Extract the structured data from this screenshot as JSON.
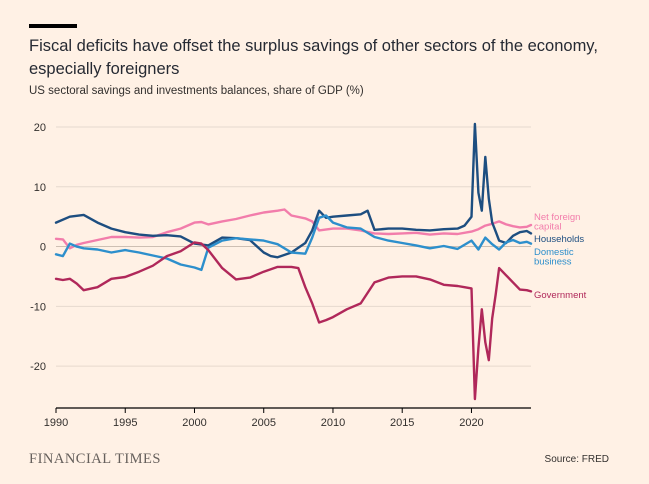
{
  "title": "Fiscal deficits have offset the surplus savings of other sectors of the economy, especially foreigners",
  "subtitle": "US sectoral savings and investments balances, share of GDP (%)",
  "brand": "FINANCIAL TIMES",
  "source": "Source: FRED",
  "colors": {
    "background": "#FFF1E5",
    "net_foreign_capital": "#F27DAB",
    "households": "#1D4E80",
    "domestic_business": "#2D8FCC",
    "government": "#B0285A",
    "grid": "#E6D9CE",
    "axis": "#33302E"
  },
  "chart_data": {
    "type": "line",
    "title": "Fiscal deficits have offset the surplus savings of other sectors of the economy, especially foreigners",
    "subtitle": "US sectoral savings and investments balances, share of GDP (%)",
    "xlabel": "",
    "ylabel": "",
    "xlim": [
      1990,
      2024.3
    ],
    "ylim": [
      -27,
      22
    ],
    "xticks": [
      1990,
      1995,
      2000,
      2005,
      2010,
      2015,
      2020
    ],
    "yticks": [
      20,
      10,
      0,
      -10,
      -20
    ],
    "grid": "horizontal",
    "legend": "direct labels at right end of lines",
    "series": [
      {
        "name": "Net foreign capital",
        "label": [
          "Net foreign",
          "capital"
        ],
        "color": "#F27DAB",
        "x": [
          1990,
          1990.5,
          1991,
          1991.5,
          1992,
          1993,
          1994,
          1995,
          1996,
          1997,
          1998,
          1999,
          2000,
          2000.5,
          2001,
          2002,
          2003,
          2004,
          2005,
          2006,
          2006.5,
          2007,
          2008,
          2008.5,
          2009,
          2010,
          2011,
          2012,
          2013,
          2014,
          2015,
          2016,
          2017,
          2018,
          2019,
          2020,
          2020.5,
          2021,
          2021.5,
          2022,
          2022.5,
          2023,
          2023.5,
          2024,
          2024.3
        ],
        "y": [
          1.3,
          1.2,
          -0.3,
          0.3,
          0.6,
          1.1,
          1.6,
          1.6,
          1.5,
          1.6,
          2.4,
          3.0,
          4.0,
          4.1,
          3.7,
          4.2,
          4.6,
          5.2,
          5.7,
          6.0,
          6.2,
          5.2,
          4.7,
          4.2,
          2.7,
          3.0,
          3.0,
          2.7,
          2.2,
          2.1,
          2.2,
          2.3,
          2.0,
          2.2,
          2.1,
          2.5,
          2.9,
          3.5,
          3.8,
          4.2,
          3.7,
          3.4,
          3.2,
          3.3,
          3.6
        ]
      },
      {
        "name": "Households",
        "color": "#1D4E80",
        "x": [
          1990,
          1991,
          1992,
          1993,
          1994,
          1995,
          1996,
          1997,
          1998,
          1999,
          2000,
          2001,
          2002,
          2003,
          2004,
          2005,
          2005.5,
          2006,
          2007,
          2008,
          2008.5,
          2009,
          2009.5,
          2010,
          2011,
          2012,
          2012.5,
          2013,
          2014,
          2015,
          2016,
          2017,
          2018,
          2019,
          2019.5,
          2020,
          2020.25,
          2020.5,
          2020.75,
          2021,
          2021.25,
          2021.5,
          2021.75,
          2022,
          2022.5,
          2023,
          2023.5,
          2024,
          2024.3
        ],
        "y": [
          4.0,
          5.0,
          5.3,
          4.0,
          3.0,
          2.4,
          2.0,
          1.8,
          1.9,
          1.7,
          0.5,
          0.2,
          1.5,
          1.4,
          1.1,
          -1.0,
          -1.6,
          -1.8,
          -1.0,
          0.6,
          2.7,
          6.0,
          4.8,
          5.0,
          5.2,
          5.4,
          6.0,
          2.8,
          3.0,
          3.0,
          2.8,
          2.7,
          2.9,
          3.0,
          3.5,
          5.0,
          20.5,
          9.0,
          6.0,
          15.0,
          8.0,
          4.0,
          2.5,
          1.0,
          0.6,
          1.8,
          2.4,
          2.6,
          2.2
        ]
      },
      {
        "name": "Domestic business",
        "label": [
          "Domestic",
          "business"
        ],
        "color": "#2D8FCC",
        "x": [
          1990,
          1990.5,
          1991,
          1991.5,
          1992,
          1993,
          1994,
          1995,
          1996,
          1997,
          1998,
          1999,
          2000,
          2000.5,
          2001,
          2002,
          2003,
          2004,
          2005,
          2006,
          2007,
          2008,
          2008.5,
          2009,
          2009.5,
          2010,
          2011,
          2012,
          2013,
          2014,
          2015,
          2016,
          2017,
          2018,
          2019,
          2020,
          2020.5,
          2021,
          2021.5,
          2022,
          2022.5,
          2023,
          2023.5,
          2024,
          2024.3
        ],
        "y": [
          -1.3,
          -1.6,
          0.5,
          0.0,
          -0.3,
          -0.5,
          -1.0,
          -0.6,
          -1.0,
          -1.5,
          -2.0,
          -3.0,
          -3.5,
          -3.9,
          -0.2,
          1.0,
          1.4,
          1.2,
          1.0,
          0.4,
          -1.0,
          -1.2,
          1.5,
          4.8,
          5.2,
          4.0,
          3.2,
          3.0,
          1.6,
          1.0,
          0.6,
          0.2,
          -0.3,
          0.1,
          -0.4,
          1.0,
          -0.5,
          1.5,
          0.4,
          -0.5,
          0.7,
          1.1,
          0.6,
          0.8,
          0.5
        ]
      },
      {
        "name": "Government",
        "color": "#B0285A",
        "x": [
          1990,
          1990.5,
          1991,
          1991.5,
          1992,
          1993,
          1994,
          1995,
          1996,
          1997,
          1998,
          1999,
          2000,
          2000.5,
          2001,
          2002,
          2003,
          2004,
          2005,
          2006,
          2007,
          2007.5,
          2008,
          2008.5,
          2009,
          2009.5,
          2010,
          2011,
          2012,
          2013,
          2014,
          2015,
          2016,
          2017,
          2018,
          2019,
          2019.5,
          2020,
          2020.25,
          2020.5,
          2020.75,
          2021,
          2021.25,
          2021.5,
          2021.75,
          2022,
          2022.5,
          2023,
          2023.5,
          2024,
          2024.3
        ],
        "y": [
          -5.4,
          -5.6,
          -5.4,
          -6.2,
          -7.3,
          -6.8,
          -5.4,
          -5.1,
          -4.2,
          -3.2,
          -1.6,
          -0.8,
          0.7,
          0.5,
          -0.6,
          -3.6,
          -5.5,
          -5.2,
          -4.2,
          -3.4,
          -3.4,
          -3.6,
          -6.8,
          -9.5,
          -12.7,
          -12.3,
          -11.8,
          -10.5,
          -9.5,
          -6.0,
          -5.2,
          -5.0,
          -5.0,
          -5.5,
          -6.4,
          -6.6,
          -6.8,
          -7.0,
          -25.5,
          -17.0,
          -10.5,
          -16.0,
          -19.0,
          -12.0,
          -8.0,
          -3.6,
          -4.8,
          -6.0,
          -7.2,
          -7.3,
          -7.5
        ]
      }
    ]
  }
}
